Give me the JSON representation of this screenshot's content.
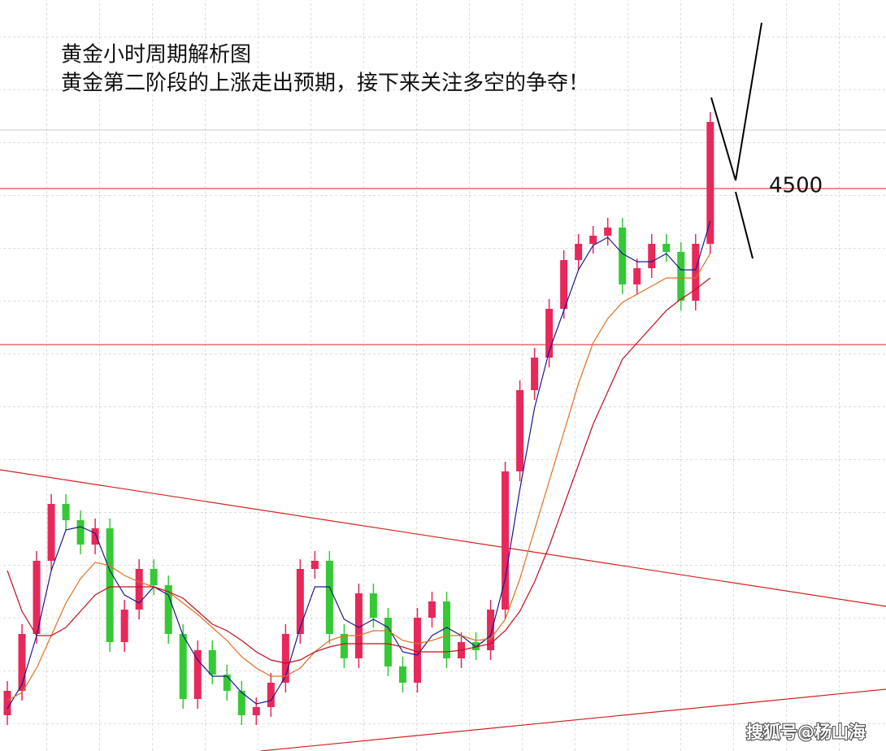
{
  "chart_data": {
    "type": "candlestick",
    "title": "黄金小时周期解析图",
    "subtitle": "黄金第二阶段的上涨走出预期，接下来关注多空的争夺！",
    "watermark": "搜狐号@杨山海",
    "xlim": [
      -0.5,
      60
    ],
    "ylim": [
      4154,
      4616
    ],
    "grid": true,
    "up_color": "#e8285a",
    "down_color": "#35c935",
    "open": [
      4176,
      4191,
      4226,
      4271,
      4306,
      4296,
      4281,
      4291,
      4221,
      4241,
      4266,
      4256,
      4226,
      4186,
      4216,
      4201,
      4191,
      4176,
      4181,
      4196,
      4226,
      4266,
      4271,
      4226,
      4211,
      4251,
      4236,
      4206,
      4196,
      4236,
      4246,
      4211,
      4221,
      4216,
      4241,
      4326,
      4376,
      4396,
      4426,
      4456,
      4466,
      4471,
      4476,
      4441,
      4451,
      4466,
      4461,
      4431,
      4466
    ],
    "high": [
      4197,
      4232,
      4277,
      4312,
      4312,
      4302,
      4297,
      4297,
      4247,
      4272,
      4272,
      4262,
      4232,
      4222,
      4222,
      4207,
      4197,
      4187,
      4202,
      4232,
      4272,
      4277,
      4277,
      4232,
      4257,
      4257,
      4242,
      4212,
      4242,
      4252,
      4252,
      4227,
      4227,
      4247,
      4332,
      4382,
      4402,
      4432,
      4462,
      4472,
      4477,
      4482,
      4482,
      4457,
      4472,
      4472,
      4467,
      4472,
      4547
    ],
    "low": [
      4170,
      4185,
      4220,
      4265,
      4290,
      4275,
      4275,
      4215,
      4215,
      4235,
      4250,
      4220,
      4180,
      4180,
      4195,
      4185,
      4170,
      4170,
      4175,
      4190,
      4220,
      4260,
      4220,
      4205,
      4205,
      4230,
      4200,
      4190,
      4190,
      4230,
      4205,
      4205,
      4210,
      4210,
      4235,
      4320,
      4370,
      4390,
      4420,
      4450,
      4460,
      4465,
      4435,
      4435,
      4445,
      4455,
      4425,
      4425,
      4460
    ],
    "close": [
      4191,
      4226,
      4271,
      4306,
      4296,
      4281,
      4291,
      4221,
      4241,
      4266,
      4256,
      4226,
      4186,
      4216,
      4201,
      4191,
      4176,
      4181,
      4196,
      4226,
      4266,
      4271,
      4226,
      4211,
      4251,
      4236,
      4206,
      4196,
      4236,
      4246,
      4211,
      4221,
      4216,
      4241,
      4326,
      4376,
      4396,
      4426,
      4456,
      4466,
      4471,
      4476,
      4441,
      4451,
      4466,
      4461,
      4431,
      4466,
      4541
    ],
    "moving_averages": [
      {
        "color": "#1a1a8c",
        "values": [
          4180,
          4195,
          4225,
          4265,
          4290,
          4292,
          4288,
          4265,
          4250,
          4245,
          4255,
          4250,
          4225,
          4210,
          4200,
          4200,
          4190,
          4183,
          4185,
          4200,
          4230,
          4255,
          4255,
          4235,
          4230,
          4235,
          4230,
          4215,
          4213,
          4225,
          4230,
          4225,
          4218,
          4225,
          4260,
          4315,
          4365,
          4400,
          4425,
          4450,
          4465,
          4470,
          4460,
          4455,
          4455,
          4460,
          4450,
          4450,
          4480
        ]
      },
      {
        "color": "#e07020",
        "values": [
          4185,
          4190,
          4205,
          4225,
          4245,
          4260,
          4270,
          4268,
          4262,
          4258,
          4255,
          4252,
          4245,
          4238,
          4230,
          4222,
          4212,
          4205,
          4200,
          4200,
          4205,
          4215,
          4222,
          4225,
          4225,
          4228,
          4228,
          4222,
          4220,
          4222,
          4225,
          4225,
          4222,
          4223,
          4235,
          4260,
          4290,
          4320,
          4350,
          4380,
          4405,
          4420,
          4430,
          4435,
          4440,
          4445,
          4445,
          4445,
          4460
        ]
      },
      {
        "color": "#c01020",
        "values": [
          4265,
          4240,
          4225,
          4225,
          4230,
          4240,
          4250,
          4255,
          4255,
          4255,
          4255,
          4252,
          4248,
          4240,
          4232,
          4228,
          4222,
          4215,
          4210,
          4208,
          4210,
          4215,
          4218,
          4220,
          4220,
          4220,
          4220,
          4218,
          4215,
          4215,
          4215,
          4216,
          4218,
          4220,
          4228,
          4240,
          4258,
          4280,
          4305,
          4330,
          4355,
          4375,
          4395,
          4405,
          4415,
          4425,
          4432,
          4438,
          4445
        ]
      }
    ],
    "hlines": [
      4500,
      4404
    ],
    "hline_color": "#d42020",
    "trendlines": [
      {
        "color": "#d42020",
        "x": [
          -0.5,
          60
        ],
        "y": [
          4327,
          4243
        ]
      },
      {
        "color": "#d42020",
        "x": [
          17.3,
          60
        ],
        "y": [
          4154,
          4192
        ]
      }
    ]
  }
}
